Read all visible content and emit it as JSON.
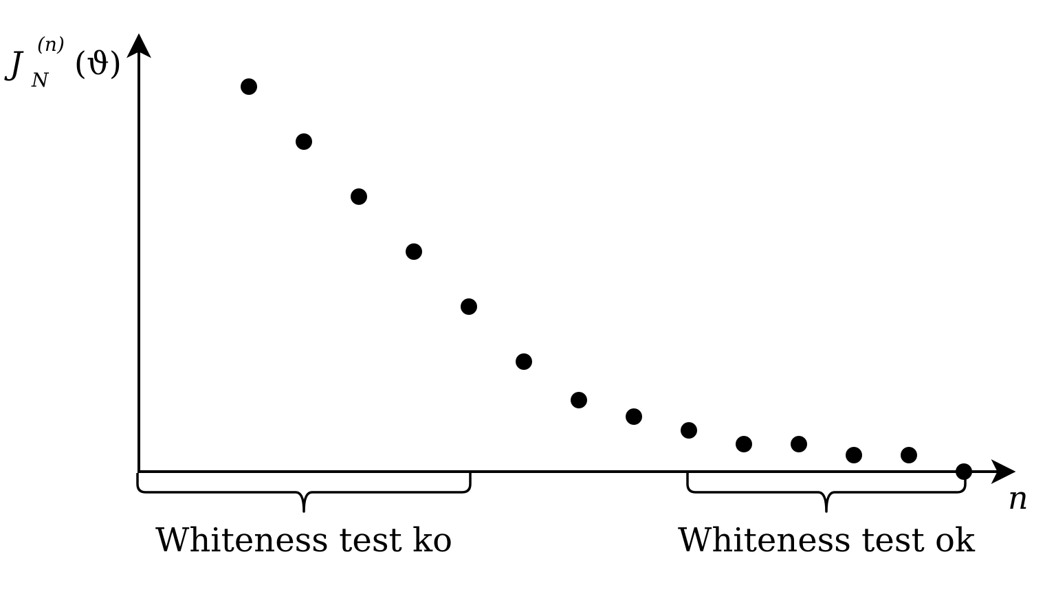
{
  "chart_data": {
    "type": "scatter",
    "x": [
      1,
      2,
      3,
      4,
      5,
      6,
      7,
      8,
      9,
      10,
      11,
      12,
      13,
      14
    ],
    "y": [
      7.0,
      6.0,
      5.0,
      4.0,
      3.0,
      2.0,
      1.3,
      1.0,
      0.75,
      0.5,
      0.5,
      0.3,
      0.3,
      0.0
    ],
    "xlim": [
      -1,
      15.5
    ],
    "ylim": [
      0,
      8.0
    ],
    "grid": false,
    "ylabel": {
      "base": "J",
      "sub": "N",
      "sup": "(n)",
      "arg": "(ϑ)"
    },
    "xlabel": "n",
    "annotations": [
      {
        "text": "Whiteness test ko",
        "range": [
          -1,
          5
        ]
      },
      {
        "text": "Whiteness test ok",
        "range": [
          9,
          14
        ]
      }
    ],
    "colors": {
      "points": "#000000",
      "axes": "#000000"
    }
  }
}
